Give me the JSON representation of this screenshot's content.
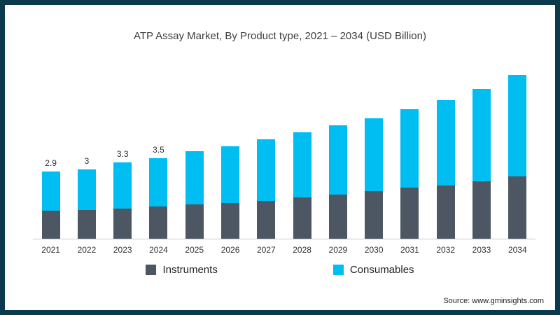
{
  "page": {
    "source": "Source: www.gminsights.com"
  },
  "chart_data": {
    "type": "bar",
    "stacked": true,
    "title": "ATP Assay Market, By Product type, 2021 – 2034 (USD Billion)",
    "categories": [
      "2021",
      "2022",
      "2023",
      "2024",
      "2025",
      "2026",
      "2027",
      "2028",
      "2029",
      "2030",
      "2031",
      "2032",
      "2033",
      "2034"
    ],
    "series": [
      {
        "name": "Instruments",
        "color": "#4d5763",
        "values": [
          1.2,
          1.25,
          1.3,
          1.4,
          1.5,
          1.55,
          1.65,
          1.8,
          1.9,
          2.05,
          2.2,
          2.3,
          2.5,
          2.7
        ]
      },
      {
        "name": "Consumables",
        "color": "#00bdf2",
        "values": [
          1.7,
          1.75,
          2.0,
          2.1,
          2.3,
          2.45,
          2.65,
          2.8,
          3.0,
          3.15,
          3.4,
          3.7,
          4.0,
          4.4
        ]
      }
    ],
    "totals": [
      2.9,
      3.0,
      3.3,
      3.5,
      3.8,
      4.0,
      4.3,
      4.6,
      4.9,
      5.2,
      5.6,
      6.0,
      6.5,
      7.1
    ],
    "data_labels": [
      "2.9",
      "3",
      "3.3",
      "3.5",
      "",
      "",
      "",
      "",
      "",
      "",
      "",
      "",
      "",
      ""
    ],
    "ylim": [
      0,
      7.5
    ],
    "grid": false,
    "legend_position": "bottom",
    "border_color": "#0c3a4d"
  }
}
